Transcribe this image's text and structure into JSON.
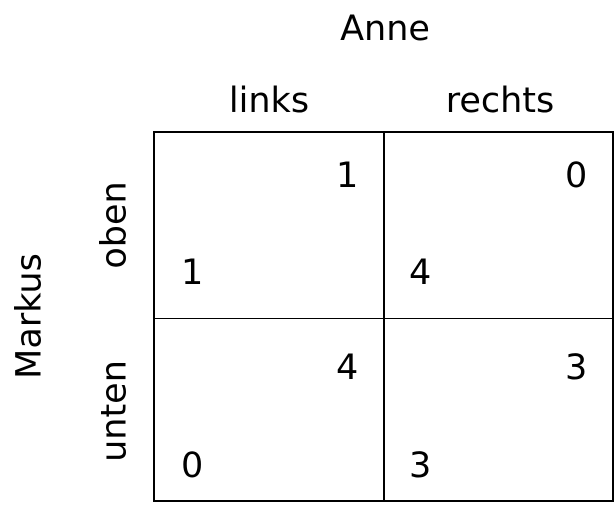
{
  "players": {
    "column": "Anne",
    "row": "Markus"
  },
  "column_strategies": [
    "links",
    "rechts"
  ],
  "row_strategies": [
    "oben",
    "unten"
  ],
  "payoff_matrix": [
    [
      {
        "row_payoff": "1",
        "column_payoff": "1"
      },
      {
        "row_payoff": "4",
        "column_payoff": "0"
      }
    ],
    [
      {
        "row_payoff": "0",
        "column_payoff": "4"
      },
      {
        "row_payoff": "3",
        "column_payoff": "3"
      }
    ]
  ]
}
